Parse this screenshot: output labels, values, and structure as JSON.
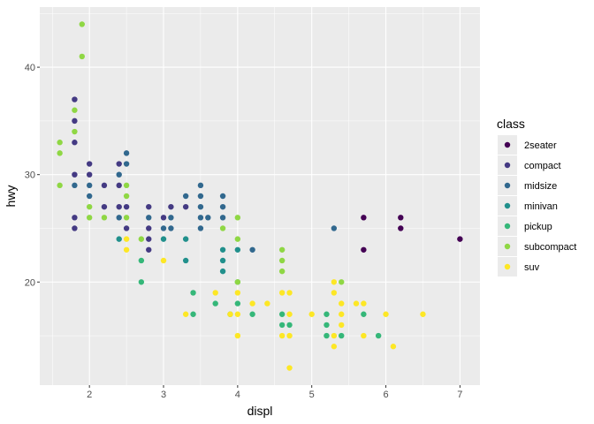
{
  "chart_data": {
    "type": "scatter",
    "title": "",
    "xlabel": "displ",
    "ylabel": "hwy",
    "xlim": [
      1.33,
      7.27
    ],
    "ylim": [
      10.4,
      45.6
    ],
    "xticks": [
      2,
      3,
      4,
      5,
      6,
      7
    ],
    "yticks": [
      20,
      30,
      40
    ],
    "grid": true,
    "legend": {
      "title": "class",
      "placement": "right"
    },
    "classes": [
      "2seater",
      "compact",
      "midsize",
      "minivan",
      "pickup",
      "subcompact",
      "suv"
    ],
    "colors": [
      "#440154",
      "#443A83",
      "#31688E",
      "#21908C",
      "#35B779",
      "#8FD744",
      "#FDE725"
    ],
    "points": [
      [
        1.9,
        44,
        5
      ],
      [
        1.9,
        41,
        5
      ],
      [
        1.8,
        37,
        1
      ],
      [
        1.8,
        36,
        5
      ],
      [
        1.8,
        35,
        1
      ],
      [
        1.8,
        34,
        5
      ],
      [
        1.6,
        33,
        5
      ],
      [
        1.8,
        33,
        1
      ],
      [
        1.6,
        32,
        5
      ],
      [
        2.5,
        32,
        2
      ],
      [
        2.0,
        31,
        1
      ],
      [
        2.4,
        31,
        1
      ],
      [
        2.5,
        31,
        2
      ],
      [
        1.8,
        30,
        1
      ],
      [
        2.0,
        30,
        1
      ],
      [
        2.4,
        30,
        2
      ],
      [
        1.6,
        29,
        5
      ],
      [
        1.8,
        29,
        2
      ],
      [
        2.0,
        29,
        2
      ],
      [
        2.2,
        29,
        1
      ],
      [
        2.4,
        29,
        1
      ],
      [
        2.5,
        29,
        5
      ],
      [
        2.0,
        28,
        2
      ],
      [
        2.5,
        28,
        5
      ],
      [
        2.0,
        27,
        5
      ],
      [
        2.2,
        27,
        1
      ],
      [
        2.4,
        27,
        1
      ],
      [
        2.5,
        27,
        1
      ],
      [
        2.8,
        27,
        1
      ],
      [
        3.1,
        27,
        1
      ],
      [
        1.8,
        26,
        1
      ],
      [
        2.0,
        26,
        5
      ],
      [
        2.2,
        26,
        5
      ],
      [
        2.4,
        26,
        2
      ],
      [
        2.5,
        26,
        5
      ],
      [
        2.8,
        26,
        2
      ],
      [
        3.0,
        26,
        1
      ],
      [
        3.1,
        26,
        2
      ],
      [
        1.8,
        25,
        1
      ],
      [
        2.5,
        25,
        1
      ],
      [
        2.8,
        25,
        1
      ],
      [
        3.0,
        25,
        2
      ],
      [
        3.1,
        25,
        2
      ],
      [
        2.4,
        24,
        3
      ],
      [
        2.5,
        24,
        6
      ],
      [
        2.7,
        24,
        5
      ],
      [
        2.8,
        24,
        1
      ],
      [
        3.0,
        24,
        3
      ],
      [
        2.5,
        23,
        6
      ],
      [
        2.8,
        23,
        1
      ],
      [
        2.7,
        22,
        4
      ],
      [
        3.0,
        22,
        6
      ],
      [
        2.7,
        20,
        4
      ],
      [
        3.5,
        29,
        2
      ],
      [
        3.3,
        28,
        2
      ],
      [
        3.3,
        27,
        1
      ],
      [
        3.5,
        28,
        2
      ],
      [
        3.5,
        27,
        2
      ],
      [
        3.5,
        26,
        2
      ],
      [
        3.5,
        25,
        2
      ],
      [
        3.6,
        26,
        2
      ],
      [
        3.8,
        28,
        2
      ],
      [
        3.8,
        27,
        2
      ],
      [
        3.8,
        26,
        2
      ],
      [
        3.8,
        25,
        5
      ],
      [
        4.0,
        26,
        5
      ],
      [
        4.0,
        24,
        5
      ],
      [
        3.8,
        23,
        3
      ],
      [
        3.8,
        22,
        3
      ],
      [
        3.8,
        21,
        3
      ],
      [
        4.0,
        23,
        3
      ],
      [
        4.2,
        23,
        2
      ],
      [
        3.3,
        24,
        3
      ],
      [
        3.3,
        22,
        3
      ],
      [
        4.0,
        20,
        4
      ],
      [
        4.0,
        20,
        5
      ],
      [
        5.7,
        26,
        0
      ],
      [
        6.2,
        26,
        0
      ],
      [
        6.2,
        25,
        0
      ],
      [
        7.0,
        24,
        0
      ],
      [
        5.7,
        23,
        0
      ],
      [
        5.3,
        25,
        2
      ],
      [
        4.6,
        23,
        5
      ],
      [
        4.6,
        22,
        5
      ],
      [
        4.6,
        21,
        5
      ],
      [
        5.3,
        20,
        6
      ],
      [
        5.4,
        20,
        5
      ],
      [
        3.4,
        19,
        4
      ],
      [
        3.7,
        19,
        6
      ],
      [
        4.0,
        19,
        6
      ],
      [
        4.6,
        19,
        6
      ],
      [
        4.7,
        19,
        6
      ],
      [
        5.3,
        19,
        6
      ],
      [
        3.7,
        18,
        4
      ],
      [
        4.0,
        18,
        4
      ],
      [
        4.2,
        18,
        6
      ],
      [
        4.4,
        18,
        6
      ],
      [
        5.4,
        18,
        6
      ],
      [
        5.6,
        18,
        6
      ],
      [
        5.7,
        18,
        6
      ],
      [
        3.3,
        17,
        6
      ],
      [
        3.4,
        17,
        4
      ],
      [
        3.9,
        17,
        4
      ],
      [
        3.9,
        17,
        6
      ],
      [
        4.0,
        17,
        6
      ],
      [
        4.2,
        17,
        4
      ],
      [
        4.6,
        17,
        4
      ],
      [
        4.7,
        17,
        6
      ],
      [
        5.0,
        17,
        6
      ],
      [
        5.2,
        17,
        4
      ],
      [
        5.4,
        17,
        6
      ],
      [
        5.7,
        17,
        4
      ],
      [
        6.0,
        17,
        6
      ],
      [
        6.5,
        17,
        6
      ],
      [
        4.6,
        16,
        4
      ],
      [
        4.7,
        16,
        4
      ],
      [
        5.2,
        16,
        4
      ],
      [
        5.4,
        16,
        6
      ],
      [
        4.0,
        15,
        6
      ],
      [
        4.6,
        15,
        6
      ],
      [
        4.7,
        15,
        6
      ],
      [
        5.2,
        15,
        4
      ],
      [
        5.3,
        15,
        6
      ],
      [
        5.4,
        15,
        4
      ],
      [
        5.7,
        15,
        6
      ],
      [
        5.9,
        15,
        4
      ],
      [
        5.3,
        14,
        6
      ],
      [
        6.1,
        14,
        6
      ],
      [
        4.7,
        12,
        6
      ]
    ]
  }
}
